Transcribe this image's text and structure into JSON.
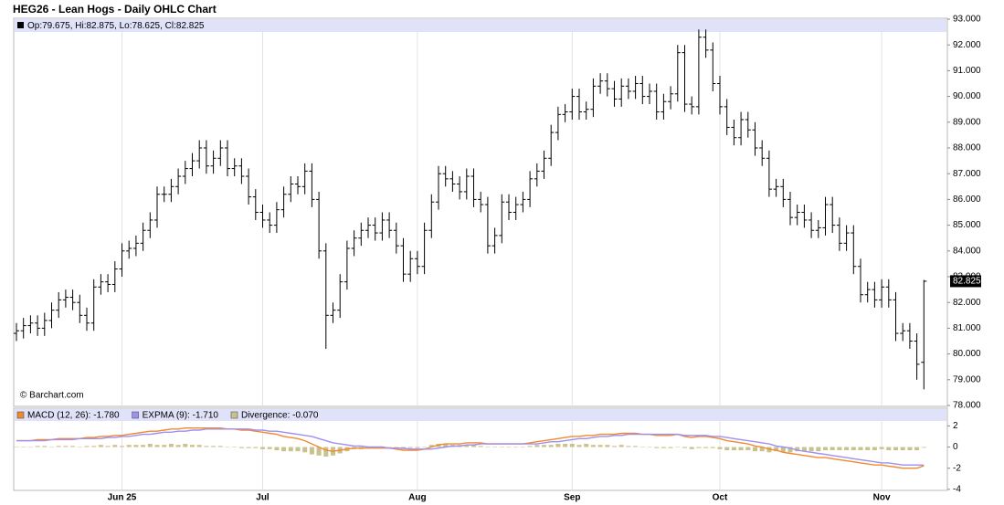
{
  "chart_data": [
    {
      "type": "ohlc",
      "title": "HEG26 - Lean Hogs - Daily OHLC Chart",
      "ohlc_legend": "Op:79.675, Hi:82.875, Lo:78.625, Cl:82.825",
      "watermark": "© Barchart.com",
      "color": "#000000",
      "grid": true,
      "categories": [
        null,
        null,
        null,
        null,
        null,
        null,
        null,
        null,
        null,
        null,
        null,
        null,
        null,
        null,
        null,
        "Jun 25",
        null,
        null,
        null,
        null,
        null,
        null,
        null,
        null,
        null,
        null,
        null,
        null,
        null,
        null,
        null,
        null,
        null,
        null,
        null,
        "Jul",
        null,
        null,
        null,
        null,
        null,
        null,
        null,
        null,
        null,
        null,
        null,
        null,
        null,
        null,
        null,
        null,
        null,
        null,
        null,
        null,
        null,
        "Aug",
        null,
        null,
        null,
        null,
        null,
        null,
        null,
        null,
        null,
        null,
        null,
        null,
        null,
        null,
        null,
        null,
        null,
        null,
        null,
        null,
        null,
        "Sep",
        null,
        null,
        null,
        null,
        null,
        null,
        null,
        null,
        null,
        null,
        null,
        null,
        null,
        null,
        null,
        null,
        null,
        null,
        null,
        null,
        "Oct",
        null,
        null,
        null,
        null,
        null,
        null,
        null,
        null,
        null,
        null,
        null,
        null,
        null,
        null,
        null,
        null,
        null,
        null,
        null,
        null,
        null,
        null,
        "Nov",
        null,
        null,
        null,
        null,
        null,
        null
      ],
      "open": [
        80.8,
        80.9,
        81.1,
        81.2,
        81.0,
        81.3,
        81.7,
        82.1,
        82.2,
        82.0,
        81.5,
        81.2,
        82.6,
        82.8,
        82.7,
        83.3,
        84.0,
        84.1,
        84.3,
        84.8,
        85.2,
        86.2,
        86.2,
        86.5,
        86.9,
        87.2,
        87.5,
        88.0,
        87.3,
        87.6,
        88.0,
        87.2,
        87.3,
        86.9,
        86.1,
        85.5,
        85.2,
        85.0,
        85.6,
        86.2,
        86.6,
        86.5,
        87.1,
        86.0,
        84.0,
        81.5,
        81.7,
        82.8,
        84.1,
        84.5,
        84.8,
        85.0,
        84.7,
        85.2,
        84.8,
        84.2,
        83.1,
        83.7,
        83.4,
        84.8,
        85.9,
        87.0,
        86.8,
        86.6,
        86.3,
        86.9,
        86.0,
        85.8,
        84.2,
        84.6,
        85.9,
        85.5,
        85.8,
        86.0,
        86.8,
        87.1,
        87.6,
        88.6,
        89.3,
        89.4,
        90.0,
        89.4,
        89.5,
        90.4,
        90.6,
        90.3,
        89.9,
        90.4,
        90.2,
        90.5,
        90.0,
        90.2,
        89.4,
        89.8,
        90.1,
        91.7,
        89.7,
        89.6,
        92.3,
        91.8,
        90.5,
        89.6,
        88.8,
        88.4,
        89.1,
        88.7,
        88.0,
        87.6,
        86.4,
        86.5,
        86.0,
        85.3,
        85.5,
        85.2,
        84.8,
        84.9,
        85.8,
        85.0,
        84.3,
        84.7,
        83.4,
        82.3,
        82.5,
        82.1,
        82.6,
        82.1,
        80.8,
        80.9,
        80.5,
        79.675
      ],
      "high": [
        81.2,
        81.4,
        81.5,
        81.5,
        81.6,
        82.0,
        82.4,
        82.5,
        82.5,
        82.3,
        81.8,
        82.9,
        83.1,
        83.1,
        83.6,
        84.3,
        84.4,
        84.6,
        85.1,
        85.5,
        86.5,
        86.5,
        86.8,
        87.2,
        87.5,
        87.8,
        88.3,
        88.3,
        87.9,
        88.3,
        88.3,
        87.6,
        87.6,
        87.2,
        86.4,
        85.8,
        85.5,
        85.9,
        86.5,
        86.9,
        86.9,
        87.4,
        87.4,
        86.3,
        84.3,
        82.0,
        83.1,
        84.4,
        84.8,
        85.1,
        85.3,
        85.3,
        85.5,
        85.5,
        85.1,
        84.5,
        84.0,
        84.0,
        85.1,
        86.2,
        87.3,
        87.3,
        87.1,
        86.9,
        87.2,
        87.2,
        86.3,
        86.1,
        84.9,
        86.2,
        86.2,
        86.1,
        86.3,
        87.1,
        87.4,
        87.9,
        88.9,
        89.6,
        89.7,
        90.3,
        90.3,
        89.8,
        90.7,
        90.9,
        90.9,
        90.6,
        90.7,
        90.7,
        90.8,
        90.8,
        90.5,
        90.5,
        90.1,
        90.4,
        92.0,
        92.0,
        90.0,
        92.6,
        92.6,
        92.1,
        90.8,
        89.9,
        89.1,
        89.4,
        89.4,
        89.0,
        88.3,
        87.9,
        86.8,
        86.8,
        86.3,
        85.8,
        85.8,
        85.5,
        85.2,
        86.1,
        86.1,
        85.3,
        85.0,
        85.0,
        83.7,
        82.8,
        82.8,
        82.9,
        82.9,
        82.4,
        81.2,
        81.2,
        80.8,
        82.875
      ],
      "low": [
        80.5,
        80.6,
        80.8,
        80.7,
        80.7,
        81.0,
        81.4,
        81.8,
        81.7,
        81.2,
        80.9,
        80.9,
        82.3,
        82.4,
        82.4,
        83.0,
        83.7,
        83.8,
        84.0,
        84.5,
        84.9,
        85.9,
        85.9,
        86.2,
        86.6,
        86.9,
        87.2,
        87.0,
        87.0,
        87.3,
        86.9,
        86.9,
        86.6,
        85.8,
        85.2,
        84.9,
        84.7,
        84.7,
        85.3,
        85.9,
        86.2,
        86.2,
        85.7,
        83.7,
        80.2,
        81.2,
        81.4,
        82.5,
        83.8,
        84.2,
        84.5,
        84.4,
        84.4,
        84.5,
        83.9,
        82.8,
        82.8,
        83.1,
        83.1,
        84.5,
        85.6,
        86.5,
        86.3,
        86.0,
        86.0,
        85.7,
        85.5,
        83.9,
        83.9,
        84.3,
        85.2,
        85.2,
        85.5,
        85.7,
        86.5,
        86.8,
        87.3,
        88.3,
        89.0,
        89.1,
        89.1,
        89.1,
        89.2,
        90.1,
        90.0,
        89.6,
        89.6,
        89.9,
        89.9,
        89.7,
        89.7,
        89.1,
        89.1,
        89.5,
        89.8,
        89.4,
        89.3,
        89.3,
        91.5,
        90.2,
        89.3,
        88.5,
        88.1,
        88.1,
        88.4,
        87.7,
        87.3,
        86.1,
        86.1,
        85.7,
        85.0,
        85.0,
        84.9,
        84.5,
        84.5,
        84.6,
        84.7,
        84.0,
        84.0,
        83.1,
        82.0,
        82.0,
        81.8,
        81.8,
        81.8,
        80.5,
        80.5,
        80.2,
        79.0,
        78.625
      ],
      "close": [
        80.9,
        81.1,
        81.2,
        81.0,
        81.3,
        81.7,
        82.1,
        82.2,
        82.0,
        81.5,
        81.2,
        82.6,
        82.8,
        82.7,
        83.3,
        84.0,
        84.1,
        84.3,
        84.8,
        85.2,
        86.2,
        86.2,
        86.5,
        86.9,
        87.2,
        87.5,
        88.0,
        87.3,
        87.6,
        88.0,
        87.2,
        87.3,
        86.9,
        86.1,
        85.5,
        85.2,
        85.0,
        85.6,
        86.2,
        86.6,
        86.5,
        87.1,
        86.0,
        84.0,
        81.5,
        81.7,
        82.8,
        84.1,
        84.5,
        84.8,
        85.0,
        84.7,
        85.2,
        84.8,
        84.2,
        83.1,
        83.7,
        83.4,
        84.8,
        85.9,
        87.0,
        86.8,
        86.6,
        86.3,
        86.9,
        86.0,
        85.8,
        84.2,
        84.6,
        85.9,
        85.5,
        85.8,
        86.0,
        86.8,
        87.1,
        87.6,
        88.6,
        89.3,
        89.4,
        90.0,
        89.4,
        89.5,
        90.4,
        90.6,
        90.3,
        89.9,
        90.4,
        90.2,
        90.5,
        90.0,
        90.2,
        89.4,
        89.8,
        90.1,
        91.7,
        89.7,
        89.6,
        92.3,
        91.8,
        90.5,
        89.6,
        88.8,
        88.4,
        89.1,
        88.7,
        88.0,
        87.6,
        86.4,
        86.5,
        86.0,
        85.3,
        85.5,
        85.2,
        84.8,
        84.9,
        85.8,
        85.0,
        84.3,
        84.7,
        83.4,
        82.3,
        82.5,
        82.1,
        82.6,
        82.1,
        80.8,
        80.9,
        80.5,
        79.6,
        82.825
      ],
      "ylim": [
        78,
        93
      ],
      "yticks": [
        {
          "value": 93,
          "label": "93.000"
        },
        {
          "value": 92,
          "label": "92.000"
        },
        {
          "value": 91,
          "label": "91.000"
        },
        {
          "value": 90,
          "label": "90.000"
        },
        {
          "value": 89,
          "label": "89.000"
        },
        {
          "value": 88,
          "label": "88.000"
        },
        {
          "value": 87,
          "label": "87.000"
        },
        {
          "value": 86,
          "label": "86.000"
        },
        {
          "value": 85,
          "label": "85.000"
        },
        {
          "value": 84,
          "label": "84.000"
        },
        {
          "value": 83,
          "label": "83.000"
        },
        {
          "value": 82,
          "label": "82.000"
        },
        {
          "value": 81,
          "label": "81.000"
        },
        {
          "value": 80,
          "label": "80.000"
        },
        {
          "value": 79,
          "label": "79.000"
        },
        {
          "value": 78,
          "label": "78.000"
        }
      ]
    },
    {
      "type": "macd",
      "ylim": [
        -4.1,
        3.5
      ],
      "yticks": [
        2,
        0,
        -2,
        -4
      ],
      "series": [
        {
          "name": "MACD (12, 26): -1.780",
          "color": "#f08a30",
          "kind": "line",
          "values": [
            0.6,
            0.6,
            0.6,
            0.7,
            0.7,
            0.7,
            0.8,
            0.8,
            0.8,
            0.8,
            0.9,
            0.9,
            1.0,
            1.0,
            1.1,
            1.1,
            1.2,
            1.3,
            1.4,
            1.5,
            1.5,
            1.6,
            1.7,
            1.7,
            1.8,
            1.8,
            1.8,
            1.8,
            1.8,
            1.8,
            1.7,
            1.7,
            1.6,
            1.6,
            1.5,
            1.4,
            1.3,
            1.2,
            1.0,
            0.9,
            0.8,
            0.6,
            0.3,
            0.0,
            -0.3,
            -0.4,
            -0.3,
            -0.2,
            -0.1,
            -0.1,
            -0.1,
            -0.1,
            -0.1,
            -0.1,
            -0.2,
            -0.3,
            -0.3,
            -0.3,
            -0.2,
            0.0,
            0.2,
            0.3,
            0.3,
            0.3,
            0.4,
            0.4,
            0.4,
            0.3,
            0.3,
            0.3,
            0.3,
            0.3,
            0.3,
            0.4,
            0.5,
            0.6,
            0.7,
            0.8,
            0.9,
            1.0,
            1.0,
            1.1,
            1.1,
            1.2,
            1.2,
            1.2,
            1.3,
            1.3,
            1.3,
            1.2,
            1.2,
            1.1,
            1.1,
            1.1,
            1.2,
            1.0,
            0.9,
            1.0,
            1.0,
            0.9,
            0.8,
            0.6,
            0.5,
            0.4,
            0.3,
            0.1,
            0.0,
            -0.2,
            -0.3,
            -0.5,
            -0.6,
            -0.7,
            -0.8,
            -0.9,
            -1.0,
            -1.0,
            -1.1,
            -1.2,
            -1.3,
            -1.4,
            -1.5,
            -1.6,
            -1.7,
            -1.7,
            -1.8,
            -1.9,
            -2.0,
            -2.0,
            -2.0,
            -1.78
          ]
        },
        {
          "name": "EXPMA (9): -1.710",
          "color": "#9f8ff0",
          "kind": "line",
          "values": [
            0.6,
            0.6,
            0.6,
            0.6,
            0.6,
            0.7,
            0.7,
            0.7,
            0.7,
            0.8,
            0.8,
            0.8,
            0.8,
            0.9,
            0.9,
            1.0,
            1.0,
            1.1,
            1.2,
            1.2,
            1.3,
            1.4,
            1.4,
            1.5,
            1.5,
            1.6,
            1.6,
            1.7,
            1.7,
            1.7,
            1.7,
            1.7,
            1.7,
            1.7,
            1.6,
            1.6,
            1.5,
            1.5,
            1.4,
            1.3,
            1.2,
            1.1,
            1.0,
            0.8,
            0.6,
            0.4,
            0.3,
            0.2,
            0.1,
            0.1,
            0.0,
            0.0,
            0.0,
            -0.1,
            -0.1,
            -0.1,
            -0.2,
            -0.2,
            -0.2,
            -0.2,
            -0.1,
            0.0,
            0.1,
            0.1,
            0.2,
            0.2,
            0.3,
            0.3,
            0.3,
            0.3,
            0.3,
            0.3,
            0.3,
            0.3,
            0.3,
            0.4,
            0.5,
            0.5,
            0.6,
            0.7,
            0.8,
            0.8,
            0.9,
            1.0,
            1.0,
            1.1,
            1.1,
            1.2,
            1.2,
            1.2,
            1.2,
            1.2,
            1.2,
            1.2,
            1.2,
            1.1,
            1.1,
            1.1,
            1.1,
            1.0,
            1.0,
            0.9,
            0.8,
            0.7,
            0.6,
            0.5,
            0.4,
            0.3,
            0.1,
            0.0,
            -0.1,
            -0.3,
            -0.4,
            -0.5,
            -0.6,
            -0.7,
            -0.8,
            -0.9,
            -1.0,
            -1.1,
            -1.2,
            -1.3,
            -1.4,
            -1.5,
            -1.5,
            -1.6,
            -1.7,
            -1.7,
            -1.7,
            -1.71
          ]
        },
        {
          "name": "Divergence: -0.070",
          "color": "#c9c28c",
          "kind": "bar",
          "values": [
            0,
            0,
            0,
            0.1,
            0.1,
            0,
            0.1,
            0.1,
            0.1,
            0,
            0.1,
            0.1,
            0.2,
            0.1,
            0.2,
            0.1,
            0.2,
            0.2,
            0.2,
            0.3,
            0.2,
            0.2,
            0.3,
            0.2,
            0.3,
            0.2,
            0.2,
            0.1,
            0.1,
            0.1,
            0,
            0,
            -0.1,
            -0.1,
            -0.1,
            -0.2,
            -0.2,
            -0.3,
            -0.4,
            -0.4,
            -0.4,
            -0.5,
            -0.7,
            -0.8,
            -0.9,
            -0.8,
            -0.6,
            -0.4,
            -0.2,
            -0.2,
            -0.1,
            -0.1,
            -0.1,
            0,
            -0.1,
            -0.2,
            -0.1,
            -0.1,
            0,
            0.2,
            0.3,
            0.3,
            0.2,
            0.2,
            0.2,
            0.2,
            0.1,
            0,
            0,
            0,
            0,
            0,
            0,
            0.1,
            0.2,
            0.2,
            0.2,
            0.3,
            0.3,
            0.3,
            0.2,
            0.3,
            0.2,
            0.2,
            0.2,
            0.1,
            0.2,
            0.1,
            0.1,
            0,
            0,
            -0.1,
            -0.1,
            -0.1,
            0,
            -0.1,
            -0.2,
            -0.1,
            -0.1,
            -0.1,
            -0.2,
            -0.3,
            -0.3,
            -0.3,
            -0.3,
            -0.4,
            -0.4,
            -0.5,
            -0.4,
            -0.5,
            -0.5,
            -0.4,
            -0.4,
            -0.4,
            -0.4,
            -0.3,
            -0.3,
            -0.3,
            -0.3,
            -0.3,
            -0.3,
            -0.3,
            -0.3,
            -0.2,
            -0.3,
            -0.3,
            -0.3,
            -0.3,
            -0.3,
            -0.07
          ]
        }
      ]
    }
  ]
}
